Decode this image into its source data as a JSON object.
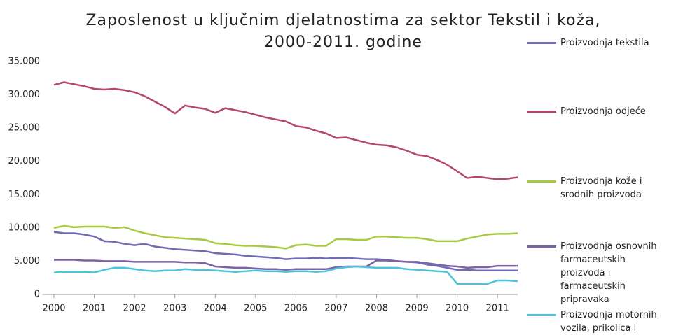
{
  "chart_data": {
    "type": "line",
    "title": "Zaposlenost u ključnim djelatnostima za sektor Tekstil i koža, 2000-2011. godine",
    "x": [
      2000,
      2000.25,
      2000.5,
      2000.75,
      2001,
      2001.25,
      2001.5,
      2001.75,
      2002,
      2002.25,
      2002.5,
      2002.75,
      2003,
      2003.25,
      2003.5,
      2003.75,
      2004,
      2004.25,
      2004.5,
      2004.75,
      2005,
      2005.25,
      2005.5,
      2005.75,
      2006,
      2006.25,
      2006.5,
      2006.75,
      2007,
      2007.25,
      2007.5,
      2007.75,
      2008,
      2008.25,
      2008.5,
      2008.75,
      2009,
      2009.25,
      2009.5,
      2009.75,
      2010,
      2010.25,
      2010.5,
      2010.75,
      2011,
      2011.25,
      2011.5
    ],
    "xlim": [
      1999.8,
      2011.5
    ],
    "xticks": [
      2000,
      2001,
      2002,
      2003,
      2004,
      2005,
      2006,
      2007,
      2008,
      2009,
      2010,
      2011
    ],
    "ylim": [
      0,
      35000
    ],
    "yticks": [
      0,
      {
        "value": 5000,
        "label": "5.000"
      },
      {
        "value": 10000,
        "label": "10.000"
      },
      {
        "value": 15000,
        "label": "15.000"
      },
      {
        "value": 20000,
        "label": "20.000"
      },
      {
        "value": 25000,
        "label": "25.000"
      },
      {
        "value": 30000,
        "label": "30.000"
      },
      {
        "value": 35000,
        "label": "35.000"
      }
    ],
    "grid": false,
    "legend": "right",
    "series": [
      {
        "name": "Proizvodnja tekstila",
        "color": "#6f6cb3",
        "values": [
          9400,
          9200,
          9200,
          9000,
          8700,
          8000,
          7900,
          7600,
          7400,
          7600,
          7200,
          7000,
          6800,
          6700,
          6600,
          6500,
          6200,
          6100,
          6000,
          5800,
          5700,
          5600,
          5500,
          5300,
          5400,
          5400,
          5500,
          5400,
          5500,
          5500,
          5400,
          5300,
          5300,
          5200,
          5000,
          4900,
          4800,
          4500,
          4300,
          4000,
          3700,
          3700,
          3600,
          3600,
          3600,
          3600,
          3600
        ]
      },
      {
        "name": "Proizvodnja odjeće",
        "color": "#b5476b",
        "values": [
          31500,
          31900,
          31600,
          31300,
          30900,
          30800,
          30900,
          30700,
          30400,
          29800,
          29000,
          28200,
          27200,
          28400,
          28100,
          27900,
          27300,
          28000,
          27700,
          27400,
          27000,
          26600,
          26300,
          26000,
          25300,
          25100,
          24600,
          24200,
          23500,
          23600,
          23200,
          22800,
          22500,
          22400,
          22100,
          21600,
          21000,
          20800,
          20200,
          19500,
          18500,
          17500,
          17700,
          17500,
          17300,
          17400,
          17600
        ]
      },
      {
        "name": "Proizvodnja kože i srodnih proizvoda",
        "color": "#a8c940",
        "values": [
          10000,
          10300,
          10100,
          10200,
          10200,
          10200,
          10000,
          10100,
          9600,
          9200,
          8900,
          8600,
          8500,
          8400,
          8300,
          8200,
          7700,
          7600,
          7400,
          7300,
          7300,
          7200,
          7100,
          6900,
          7400,
          7500,
          7300,
          7300,
          8300,
          8300,
          8200,
          8200,
          8700,
          8700,
          8600,
          8500,
          8500,
          8300,
          8000,
          8000,
          8000,
          8400,
          8700,
          9000,
          9100,
          9100,
          9200
        ]
      },
      {
        "name": "Proizvodnja osnovnih farmaceutskih proizvoda i farmaceutskih pripravaka",
        "color": "#7b63a6",
        "values": [
          5200,
          5200,
          5200,
          5100,
          5100,
          5000,
          5000,
          5000,
          4900,
          4900,
          4900,
          4900,
          4900,
          4800,
          4800,
          4700,
          4200,
          4100,
          4000,
          4000,
          3900,
          3800,
          3800,
          3700,
          3800,
          3800,
          3800,
          3800,
          4100,
          4200,
          4200,
          4200,
          5100,
          5100,
          5000,
          4900,
          4900,
          4700,
          4500,
          4300,
          4200,
          4000,
          4100,
          4100,
          4300,
          4300,
          4300
        ]
      },
      {
        "name": "Proizvodnja motornih vozila, prikolica i",
        "color": "#4bc4dc",
        "values": [
          3300,
          3400,
          3400,
          3400,
          3300,
          3700,
          4000,
          4000,
          3800,
          3600,
          3500,
          3600,
          3600,
          3800,
          3700,
          3700,
          3600,
          3500,
          3400,
          3500,
          3600,
          3500,
          3500,
          3400,
          3500,
          3500,
          3400,
          3500,
          3900,
          4100,
          4200,
          4100,
          4000,
          4000,
          4000,
          3800,
          3700,
          3600,
          3500,
          3400,
          1600,
          1600,
          1600,
          1600,
          2100,
          2100,
          2000
        ]
      }
    ]
  }
}
